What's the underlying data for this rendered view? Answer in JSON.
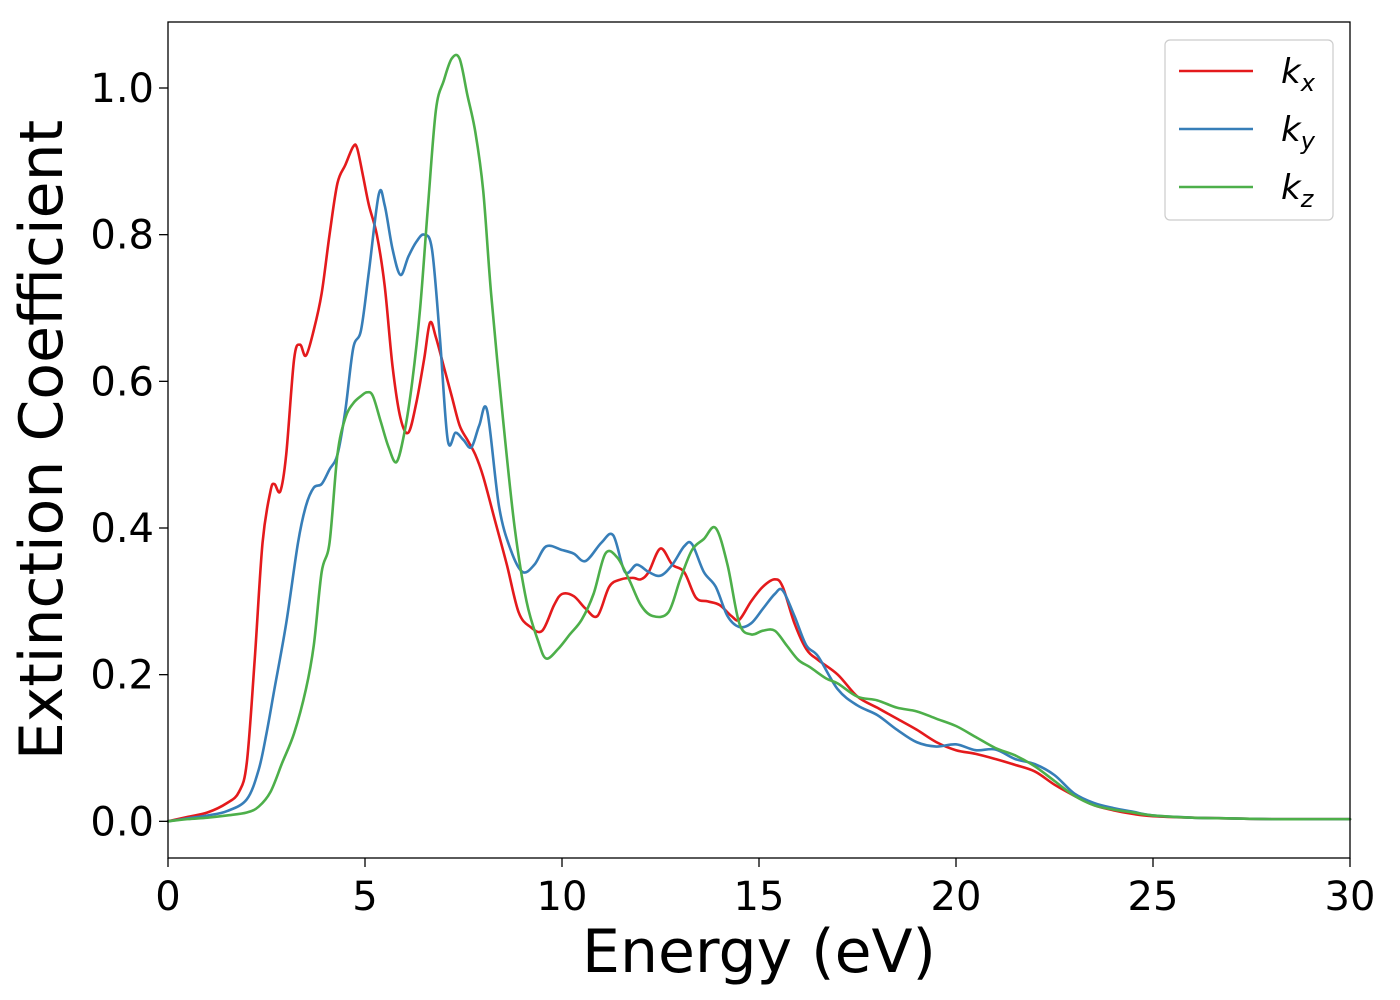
{
  "chart_data": {
    "type": "line",
    "xlabel": "Energy (eV)",
    "ylabel": "Extinction Coefficient",
    "xlim": [
      0,
      30
    ],
    "ylim": [
      -0.05,
      1.09
    ],
    "xticks": [
      0,
      5,
      10,
      15,
      20,
      25,
      30
    ],
    "yticks": [
      0.0,
      0.2,
      0.4,
      0.6,
      0.8,
      1.0
    ],
    "xtick_labels": [
      "0",
      "5",
      "10",
      "15",
      "20",
      "25",
      "30"
    ],
    "ytick_labels": [
      "0.0",
      "0.2",
      "0.4",
      "0.6",
      "0.8",
      "1.0"
    ],
    "grid": false,
    "legend_position": "top-right",
    "series": [
      {
        "name": "k_x",
        "name_base": "k",
        "name_sub": "x",
        "color": "#e41a1c",
        "x": [
          0,
          0.5,
          1.0,
          1.5,
          1.8,
          2.0,
          2.2,
          2.4,
          2.6,
          2.7,
          2.85,
          3.0,
          3.2,
          3.35,
          3.5,
          3.7,
          3.9,
          4.1,
          4.3,
          4.5,
          4.7,
          4.8,
          4.95,
          5.1,
          5.3,
          5.5,
          5.7,
          5.9,
          6.1,
          6.3,
          6.5,
          6.65,
          6.8,
          7.0,
          7.2,
          7.4,
          7.6,
          7.8,
          8.0,
          8.3,
          8.6,
          8.9,
          9.2,
          9.5,
          9.8,
          10.0,
          10.3,
          10.6,
          10.9,
          11.2,
          11.5,
          11.8,
          12.0,
          12.2,
          12.5,
          12.8,
          13.1,
          13.4,
          13.7,
          14.0,
          14.3,
          14.5,
          14.8,
          15.1,
          15.4,
          15.6,
          15.9,
          16.2,
          16.5,
          17.0,
          17.5,
          18.0,
          18.5,
          19.0,
          19.5,
          20.0,
          20.5,
          21.0,
          21.5,
          22.0,
          22.5,
          23.0,
          23.5,
          24.0,
          24.5,
          25.0,
          26.0,
          27.0,
          28.0,
          29.0,
          30.0
        ],
        "y": [
          0.0,
          0.006,
          0.012,
          0.025,
          0.04,
          0.08,
          0.22,
          0.38,
          0.45,
          0.46,
          0.45,
          0.5,
          0.63,
          0.65,
          0.635,
          0.67,
          0.72,
          0.8,
          0.87,
          0.895,
          0.92,
          0.918,
          0.88,
          0.84,
          0.8,
          0.73,
          0.62,
          0.55,
          0.53,
          0.57,
          0.63,
          0.68,
          0.66,
          0.62,
          0.58,
          0.54,
          0.52,
          0.5,
          0.47,
          0.41,
          0.35,
          0.285,
          0.265,
          0.26,
          0.295,
          0.31,
          0.307,
          0.29,
          0.28,
          0.32,
          0.33,
          0.332,
          0.33,
          0.34,
          0.372,
          0.35,
          0.34,
          0.305,
          0.3,
          0.295,
          0.28,
          0.275,
          0.3,
          0.32,
          0.33,
          0.32,
          0.27,
          0.235,
          0.22,
          0.2,
          0.17,
          0.155,
          0.14,
          0.125,
          0.108,
          0.097,
          0.092,
          0.085,
          0.077,
          0.068,
          0.05,
          0.035,
          0.022,
          0.015,
          0.01,
          0.007,
          0.005,
          0.004,
          0.003,
          0.003,
          0.003
        ]
      },
      {
        "name": "k_y",
        "name_base": "k",
        "name_sub": "y",
        "color": "#377eb8",
        "x": [
          0,
          0.5,
          1.0,
          1.5,
          2.0,
          2.3,
          2.5,
          2.7,
          3.0,
          3.3,
          3.5,
          3.7,
          3.9,
          4.1,
          4.3,
          4.5,
          4.7,
          4.9,
          5.1,
          5.35,
          5.5,
          5.7,
          5.9,
          6.1,
          6.3,
          6.5,
          6.7,
          6.9,
          7.1,
          7.3,
          7.5,
          7.7,
          7.9,
          8.1,
          8.4,
          8.7,
          9.0,
          9.3,
          9.6,
          10.0,
          10.3,
          10.6,
          11.0,
          11.3,
          11.6,
          11.9,
          12.2,
          12.5,
          12.8,
          13.1,
          13.3,
          13.6,
          13.9,
          14.2,
          14.5,
          14.8,
          15.1,
          15.4,
          15.6,
          15.9,
          16.2,
          16.5,
          17.0,
          17.5,
          18.0,
          18.5,
          19.0,
          19.5,
          20.0,
          20.5,
          21.0,
          21.5,
          22.0,
          22.5,
          23.0,
          23.5,
          24.0,
          24.5,
          25.0,
          26.0,
          27.0,
          28.0,
          29.0,
          30.0
        ],
        "y": [
          0.0,
          0.004,
          0.008,
          0.014,
          0.03,
          0.07,
          0.12,
          0.18,
          0.27,
          0.38,
          0.43,
          0.455,
          0.46,
          0.48,
          0.5,
          0.56,
          0.645,
          0.67,
          0.75,
          0.855,
          0.84,
          0.78,
          0.745,
          0.77,
          0.79,
          0.8,
          0.78,
          0.66,
          0.52,
          0.53,
          0.52,
          0.51,
          0.54,
          0.56,
          0.43,
          0.37,
          0.34,
          0.35,
          0.375,
          0.37,
          0.365,
          0.355,
          0.38,
          0.39,
          0.34,
          0.35,
          0.34,
          0.335,
          0.35,
          0.375,
          0.378,
          0.34,
          0.32,
          0.28,
          0.265,
          0.27,
          0.29,
          0.31,
          0.315,
          0.28,
          0.24,
          0.225,
          0.18,
          0.158,
          0.145,
          0.125,
          0.108,
          0.102,
          0.105,
          0.097,
          0.098,
          0.085,
          0.078,
          0.063,
          0.038,
          0.025,
          0.018,
          0.013,
          0.008,
          0.005,
          0.004,
          0.003,
          0.003,
          0.003
        ]
      },
      {
        "name": "k_z",
        "name_base": "k",
        "name_sub": "z",
        "color": "#4daf4a",
        "x": [
          0,
          0.5,
          1.0,
          1.5,
          2.0,
          2.3,
          2.6,
          2.9,
          3.2,
          3.5,
          3.7,
          3.9,
          4.1,
          4.3,
          4.5,
          4.7,
          4.9,
          5.05,
          5.2,
          5.4,
          5.6,
          5.8,
          6.0,
          6.2,
          6.4,
          6.6,
          6.8,
          7.0,
          7.2,
          7.4,
          7.6,
          7.8,
          8.0,
          8.2,
          8.5,
          8.8,
          9.1,
          9.4,
          9.6,
          9.9,
          10.2,
          10.5,
          10.8,
          11.1,
          11.4,
          11.7,
          12.0,
          12.3,
          12.7,
          13.0,
          13.3,
          13.6,
          13.9,
          14.2,
          14.5,
          14.8,
          15.1,
          15.4,
          15.7,
          16.0,
          16.3,
          16.7,
          17.0,
          17.5,
          18.0,
          18.5,
          19.0,
          19.5,
          20.0,
          20.5,
          21.0,
          21.5,
          22.0,
          22.5,
          23.0,
          23.5,
          24.0,
          24.5,
          25.0,
          26.0,
          27.0,
          28.0,
          29.0,
          30.0
        ],
        "y": [
          0.0,
          0.003,
          0.005,
          0.008,
          0.012,
          0.02,
          0.04,
          0.08,
          0.12,
          0.18,
          0.24,
          0.34,
          0.38,
          0.5,
          0.55,
          0.57,
          0.58,
          0.585,
          0.58,
          0.545,
          0.51,
          0.49,
          0.53,
          0.6,
          0.7,
          0.84,
          0.97,
          1.01,
          1.04,
          1.04,
          0.99,
          0.94,
          0.86,
          0.72,
          0.55,
          0.4,
          0.3,
          0.245,
          0.222,
          0.235,
          0.255,
          0.275,
          0.31,
          0.365,
          0.36,
          0.33,
          0.295,
          0.28,
          0.285,
          0.33,
          0.37,
          0.385,
          0.4,
          0.35,
          0.27,
          0.255,
          0.26,
          0.26,
          0.24,
          0.22,
          0.21,
          0.195,
          0.188,
          0.17,
          0.165,
          0.155,
          0.15,
          0.14,
          0.13,
          0.115,
          0.1,
          0.09,
          0.075,
          0.055,
          0.035,
          0.022,
          0.016,
          0.012,
          0.008,
          0.005,
          0.004,
          0.003,
          0.003,
          0.003
        ]
      }
    ]
  }
}
